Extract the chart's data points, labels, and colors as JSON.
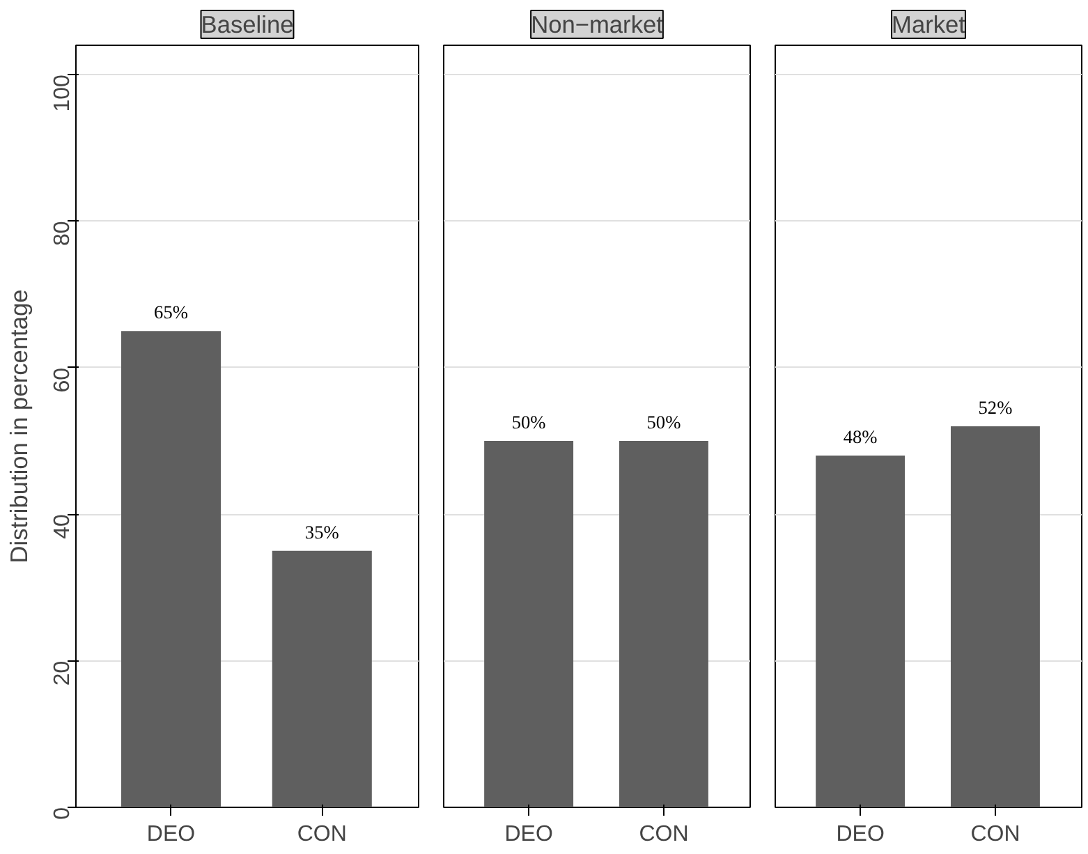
{
  "chart_data": [
    {
      "type": "bar",
      "title": "Baseline",
      "ylabel": "Distribution in percentage",
      "categories": [
        "DEO",
        "CON"
      ],
      "values": [
        65,
        35
      ],
      "value_labels": [
        "65%",
        "35%"
      ],
      "color": "#5f5f5f",
      "ylim": [
        0,
        104
      ],
      "yticks": [
        0,
        20,
        40,
        60,
        80,
        100
      ],
      "grid": "y"
    },
    {
      "type": "bar",
      "title": "Non−market",
      "categories": [
        "DEO",
        "CON"
      ],
      "values": [
        50,
        50
      ],
      "value_labels": [
        "50%",
        "50%"
      ],
      "color": "#5f5f5f",
      "ylim": [
        0,
        104
      ],
      "yticks": [
        0,
        20,
        40,
        60,
        80,
        100
      ],
      "grid": "y",
      "tick_labels": "x"
    },
    {
      "type": "bar",
      "title": "Market",
      "categories": [
        "DEO",
        "CON"
      ],
      "values": [
        48,
        52
      ],
      "value_labels": [
        "48%",
        "52%"
      ],
      "color": "#5f5f5f",
      "ylim": [
        0,
        104
      ],
      "yticks": [
        0,
        20,
        40,
        60,
        80,
        100
      ],
      "grid": "y",
      "tick_labels": "x"
    }
  ]
}
